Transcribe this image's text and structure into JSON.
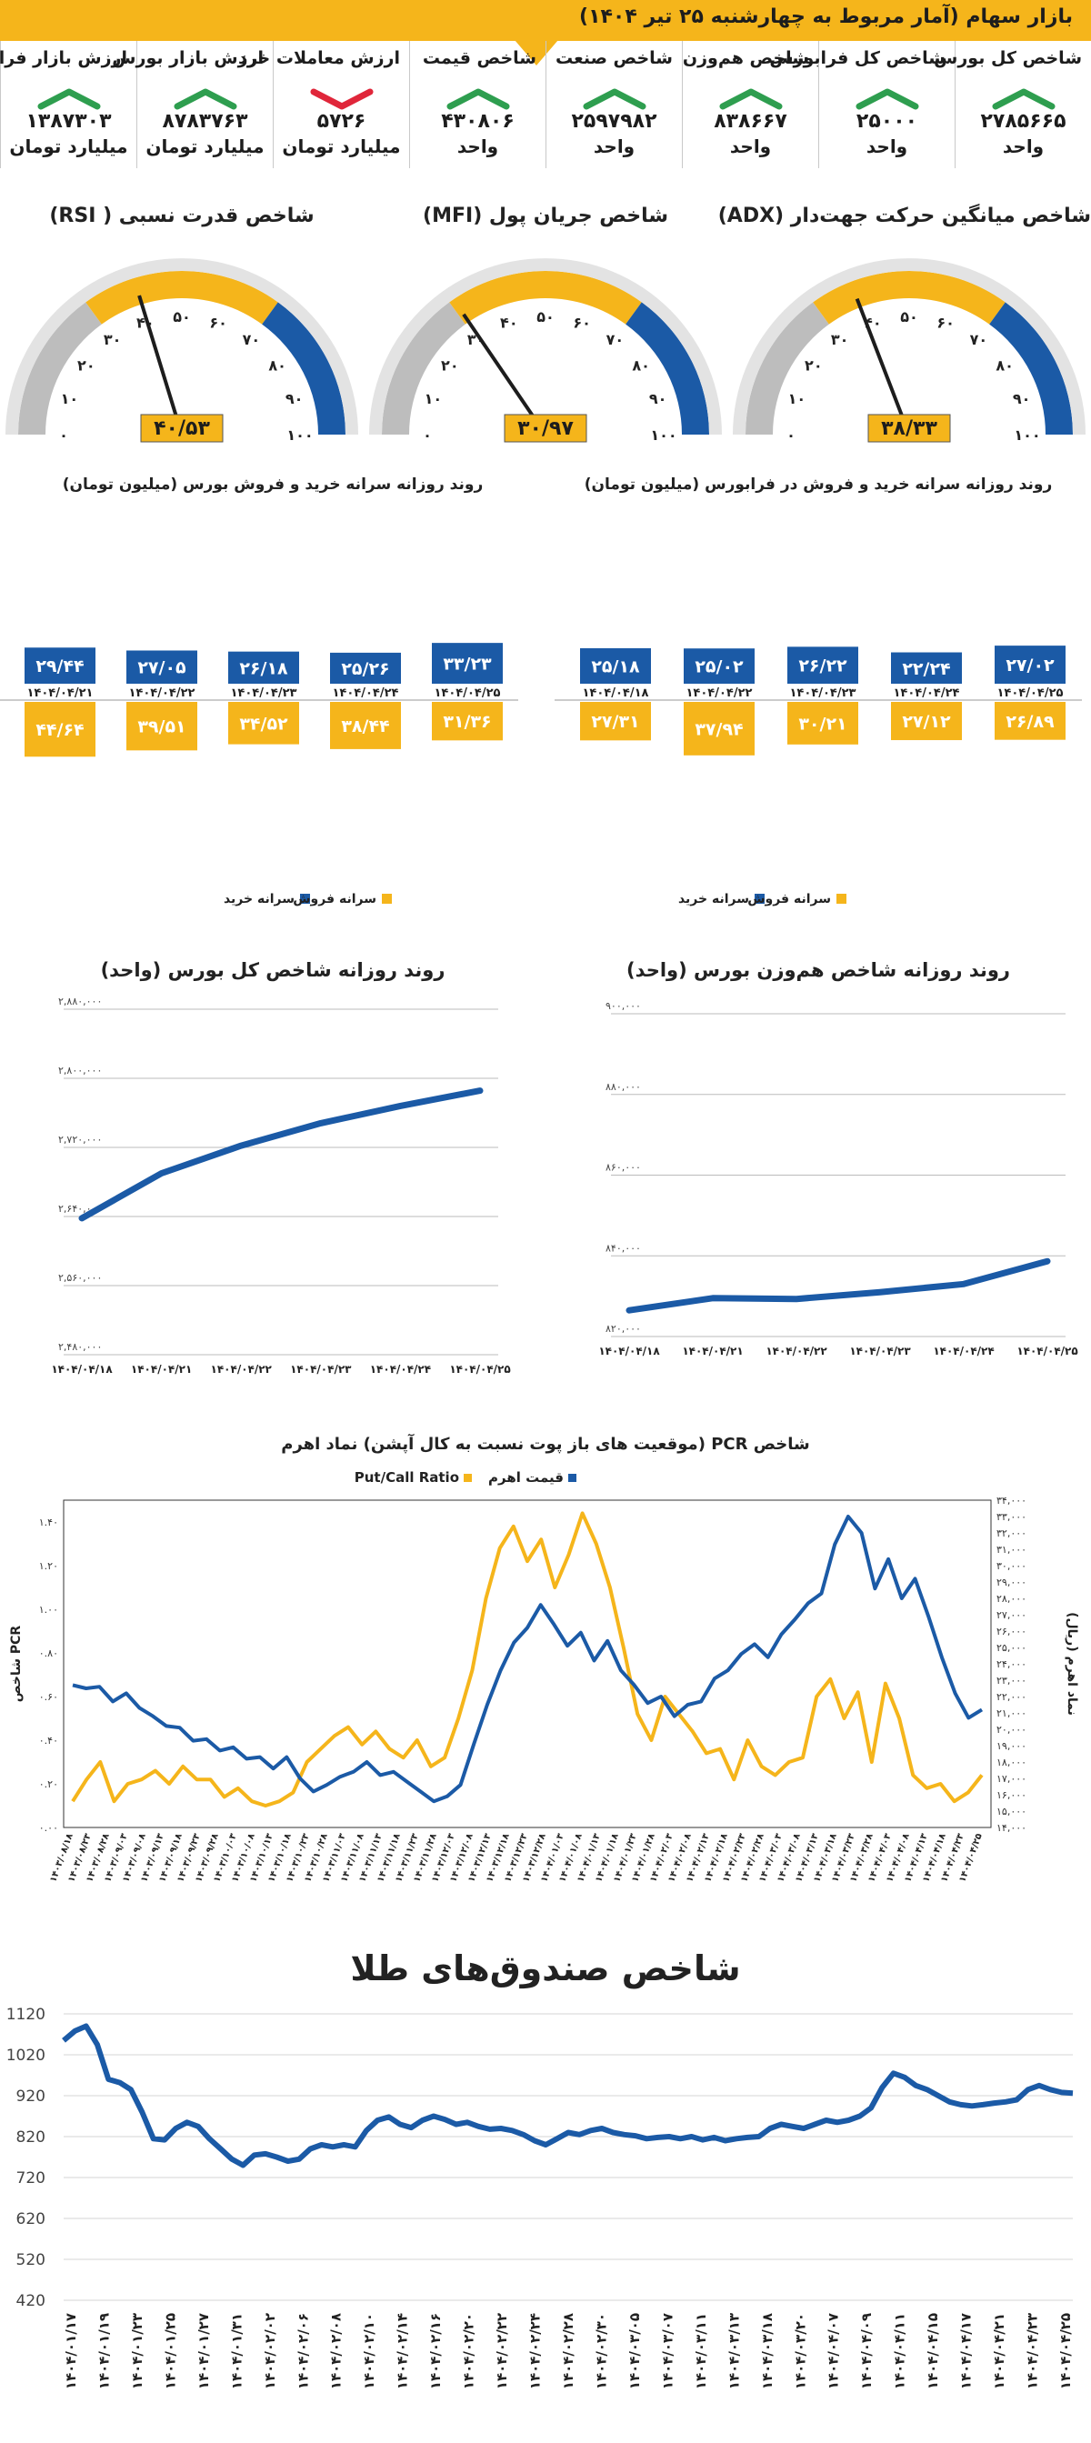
{
  "header": {
    "title": "بازار سهام (آمار مربوط به چهارشنبه ۲۵ تیر ۱۴۰۴)"
  },
  "stats": [
    {
      "label": "شاخص کل بورس",
      "value": "۲۷۸۵۶۶۵",
      "unit": "واحد",
      "trend": "up"
    },
    {
      "label": "شاخص کل فرابورس",
      "value": "۲۵۰۰۰",
      "unit": "واحد",
      "trend": "up"
    },
    {
      "label": "شاخص هم‌وزن",
      "value": "۸۳۸۶۶۷",
      "unit": "واحد",
      "trend": "up"
    },
    {
      "label": "شاخص صنعت",
      "value": "۲۵۹۷۹۸۲",
      "unit": "واحد",
      "trend": "up"
    },
    {
      "label": "شاخص قیمت",
      "value": "۴۳۰۸۰۶",
      "unit": "واحد",
      "trend": "up"
    },
    {
      "label": "ارزش معاملات خرد",
      "value": "۵۷۲۶",
      "unit": "میلیارد تومان",
      "trend": "down"
    },
    {
      "label": "ارزش بازار بورس",
      "value": "۸۷۸۳۷۶۳",
      "unit": "میلیارد تومان",
      "trend": "up"
    },
    {
      "label": "ارزش بازار فرابورس",
      "value": "۱۳۸۷۳۰۳",
      "unit": "میلیارد تومان",
      "trend": "up"
    }
  ],
  "colors": {
    "gold": "#f5b51b",
    "blue": "#1b5aa6",
    "up": "#2e9e4f",
    "down": "#e0263a",
    "gauge_gray": "#bdbdbd"
  },
  "gauges": [
    {
      "title": "شاخص میانگین حرکت جهت‌دار (ADX)",
      "value": 38.33,
      "value_label": "۳۸/۳۳"
    },
    {
      "title": "شاخص جریان پول (MFI)",
      "value": 30.97,
      "value_label": "۳۰/۹۷"
    },
    {
      "title": "شاخص قدرت نسبی ( RSI)",
      "value": 40.53,
      "value_label": "۴۰/۵۳"
    }
  ],
  "gauge_ticks": [
    "۰",
    "۱۰",
    "۲۰",
    "۳۰",
    "۴۰",
    "۵۰",
    "۶۰",
    "۷۰",
    "۸۰",
    "۹۰",
    "۱۰۰"
  ],
  "chart_data": [
    {
      "type": "bar",
      "title": "روند روزانه سرانه خرید و فروش در فرابورس (میلیون تومان)",
      "categories": [
        "۱۴۰۴/۰۴/۱۸",
        "۱۴۰۴/۰۴/۲۲",
        "۱۴۰۴/۰۴/۲۳",
        "۱۴۰۴/۰۴/۲۴",
        "۱۴۰۴/۰۴/۲۵"
      ],
      "series": [
        {
          "name": "سرانه خرید",
          "values": [
            25.18,
            25.02,
            26.22,
            22.24,
            27.02
          ],
          "labels": [
            "۲۵/۱۸",
            "۲۵/۰۲",
            "۲۶/۲۲",
            "۲۲/۲۴",
            "۲۷/۰۲"
          ]
        },
        {
          "name": "سرانه فروش",
          "values": [
            27.31,
            37.94,
            30.21,
            27.12,
            26.89
          ],
          "labels": [
            "۲۷/۳۱",
            "۳۷/۹۴",
            "۳۰/۲۱",
            "۲۷/۱۲",
            "۲۶/۸۹"
          ]
        }
      ]
    },
    {
      "type": "bar",
      "title": "روند روزانه سرانه خرید و فروش بورس (میلیون تومان)",
      "categories": [
        "۱۴۰۴/۰۴/۲۱",
        "۱۴۰۴/۰۴/۲۲",
        "۱۴۰۴/۰۴/۲۳",
        "۱۴۰۴/۰۴/۲۴",
        "۱۴۰۴/۰۴/۲۵"
      ],
      "series": [
        {
          "name": "سرانه خرید",
          "values": [
            29.44,
            27.05,
            26.18,
            25.26,
            33.23
          ],
          "labels": [
            "۲۹/۴۴",
            "۲۷/۰۵",
            "۲۶/۱۸",
            "۲۵/۲۶",
            "۳۳/۲۳"
          ]
        },
        {
          "name": "سرانه فروش",
          "values": [
            44.64,
            39.51,
            34.52,
            38.44,
            31.36
          ],
          "labels": [
            "۴۴/۶۴",
            "۳۹/۵۱",
            "۳۴/۵۲",
            "۳۸/۴۴",
            "۳۱/۳۶"
          ]
        }
      ]
    },
    {
      "type": "line",
      "title": "روند روزانه شاخص هم‌وزن بورس (واحد)",
      "x": [
        "۱۴۰۴/۰۴/۱۸",
        "۱۴۰۴/۰۴/۲۱",
        "۱۴۰۴/۰۴/۲۲",
        "۱۴۰۴/۰۴/۲۳",
        "۱۴۰۴/۰۴/۲۴",
        "۱۴۰۴/۰۴/۲۵"
      ],
      "values": [
        826500,
        829500,
        829300,
        831000,
        833000,
        838667
      ],
      "ylim": [
        820000,
        900000
      ],
      "yticks": [
        820000,
        840000,
        860000,
        880000,
        900000
      ],
      "ytick_labels": [
        "۸۲۰,۰۰۰",
        "۸۴۰,۰۰۰",
        "۸۶۰,۰۰۰",
        "۸۸۰,۰۰۰",
        "۹۰۰,۰۰۰"
      ]
    },
    {
      "type": "line",
      "title": "روند روزانه شاخص کل بورس (واحد)",
      "x": [
        "۱۴۰۴/۰۴/۱۸",
        "۱۴۰۴/۰۴/۲۱",
        "۱۴۰۴/۰۴/۲۲",
        "۱۴۰۴/۰۴/۲۳",
        "۱۴۰۴/۰۴/۲۴",
        "۱۴۰۴/۰۴/۲۵"
      ],
      "values": [
        2638000,
        2690000,
        2722000,
        2748000,
        2768000,
        2785665
      ],
      "ylim": [
        2480000,
        2880000
      ],
      "yticks": [
        2480000,
        2560000,
        2640000,
        2720000,
        2800000,
        2880000
      ],
      "ytick_labels": [
        "۲,۴۸۰,۰۰۰",
        "۲,۵۶۰,۰۰۰",
        "۲,۶۴۰,۰۰۰",
        "۲,۷۲۰,۰۰۰",
        "۲,۸۰۰,۰۰۰",
        "۲,۸۸۰,۰۰۰"
      ]
    },
    {
      "type": "line",
      "title": "شاخص PCR (موقعیت های باز پوت نسبت به کال آپشن) نماد اهرم",
      "left_axis_label": "شاخص PCR",
      "right_axis_label": "نماد اهرم (ریال)",
      "left_ylim": [
        0,
        1.5
      ],
      "left_ytick_labels": [
        "۰.۰۰",
        "۰.۲۰",
        "۰.۴۰",
        "۰.۶۰",
        "۰.۸۰",
        "۱.۰۰",
        "۱.۲۰",
        "۱.۴۰"
      ],
      "right_ylim": [
        14000,
        34000
      ],
      "right_ytick_labels": [
        "۱۴,۰۰۰",
        "۱۵,۰۰۰",
        "۱۶,۰۰۰",
        "۱۷,۰۰۰",
        "۱۸,۰۰۰",
        "۱۹,۰۰۰",
        "۲۰,۰۰۰",
        "۲۱,۰۰۰",
        "۲۲,۰۰۰",
        "۲۳,۰۰۰",
        "۲۴,۰۰۰",
        "۲۵,۰۰۰",
        "۲۶,۰۰۰",
        "۲۷,۰۰۰",
        "۲۸,۰۰۰",
        "۲۹,۰۰۰",
        "۳۰,۰۰۰",
        "۳۱,۰۰۰",
        "۳۲,۰۰۰",
        "۳۳,۰۰۰",
        "۳۴,۰۰۰"
      ],
      "series": [
        {
          "name": "Put/Call Ratio",
          "axis": "left",
          "values": [
            0.12,
            0.22,
            0.3,
            0.12,
            0.2,
            0.22,
            0.26,
            0.2,
            0.28,
            0.22,
            0.22,
            0.14,
            0.18,
            0.12,
            0.1,
            0.12,
            0.16,
            0.3,
            0.36,
            0.42,
            0.46,
            0.38,
            0.44,
            0.36,
            0.32,
            0.4,
            0.28,
            0.32,
            0.5,
            0.72,
            1.05,
            1.28,
            1.38,
            1.22,
            1.32,
            1.1,
            1.25,
            1.44,
            1.3,
            1.1,
            0.82,
            0.52,
            0.4,
            0.6,
            0.52,
            0.44,
            0.34,
            0.36,
            0.22,
            0.4,
            0.28,
            0.24,
            0.3,
            0.32,
            0.6,
            0.68,
            0.5,
            0.62,
            0.3,
            0.66,
            0.5,
            0.24,
            0.18,
            0.2,
            0.12,
            0.16,
            0.24
          ]
        },
        {
          "name": "قیمت اهرم",
          "axis": "right",
          "values": [
            22700,
            22500,
            22600,
            21700,
            22200,
            21300,
            20800,
            20200,
            20100,
            19300,
            19400,
            18700,
            18900,
            18200,
            18300,
            17600,
            18300,
            17000,
            16200,
            16600,
            17100,
            17400,
            18000,
            17200,
            17400,
            16800,
            16200,
            15600,
            15900,
            16600,
            19100,
            21500,
            23600,
            25300,
            26200,
            27600,
            26400,
            25100,
            25900,
            24200,
            25400,
            23600,
            22700,
            21600,
            22000,
            20800,
            21500,
            21700,
            23100,
            23600,
            24600,
            25200,
            24400,
            25800,
            26700,
            27700,
            28300,
            31300,
            33000,
            32000,
            28600,
            30400,
            28000,
            29200,
            26900,
            24400,
            22200,
            20700,
            21200
          ]
        }
      ],
      "x_tick_labels": [
        "۱۴۰۳/۰۸/۱۸",
        "۱۴۰۳/۰۸/۲۳",
        "۱۴۰۳/۰۸/۲۸",
        "۱۴۰۳/۰۹/۰۳",
        "۱۴۰۳/۰۹/۰۸",
        "۱۴۰۳/۰۹/۱۳",
        "۱۴۰۳/۰۹/۱۸",
        "۱۴۰۳/۰۹/۲۳",
        "۱۴۰۳/۰۹/۲۸",
        "۱۴۰۳/۱۰/۰۳",
        "۱۴۰۳/۱۰/۰۸",
        "۱۴۰۳/۱۰/۱۳",
        "۱۴۰۳/۱۰/۱۸",
        "۱۴۰۳/۱۰/۲۳",
        "۱۴۰۳/۱۰/۲۸",
        "۱۴۰۳/۱۱/۰۳",
        "۱۴۰۳/۱۱/۰۸",
        "۱۴۰۳/۱۱/۱۳",
        "۱۴۰۳/۱۱/۱۸",
        "۱۴۰۳/۱۱/۲۳",
        "۱۴۰۳/۱۱/۲۸",
        "۱۴۰۳/۱۲/۰۳",
        "۱۴۰۳/۱۲/۰۸",
        "۱۴۰۳/۱۲/۱۳",
        "۱۴۰۳/۱۲/۱۸",
        "۱۴۰۳/۱۲/۲۳",
        "۱۴۰۳/۱۲/۲۸",
        "۱۴۰۴/۰۱/۰۳",
        "۱۴۰۴/۰۱/۰۸",
        "۱۴۰۴/۰۱/۱۳",
        "۱۴۰۴/۰۱/۱۸",
        "۱۴۰۴/۰۱/۲۳",
        "۱۴۰۴/۰۱/۲۸",
        "۱۴۰۴/۰۲/۰۳",
        "۱۴۰۴/۰۲/۰۸",
        "۱۴۰۴/۰۲/۱۳",
        "۱۴۰۴/۰۲/۱۸",
        "۱۴۰۴/۰۲/۲۳",
        "۱۴۰۴/۰۲/۲۸",
        "۱۴۰۴/۰۳/۰۳",
        "۱۴۰۴/۰۳/۰۸",
        "۱۴۰۴/۰۳/۱۳",
        "۱۴۰۴/۰۳/۱۸",
        "۱۴۰۴/۰۳/۲۳",
        "۱۴۰۴/۰۳/۲۸",
        "۱۴۰۴/۰۴/۰۳",
        "۱۴۰۴/۰۴/۰۸",
        "۱۴۰۴/۰۴/۱۳",
        "۱۴۰۴/۰۴/۱۸",
        "۱۴۰۴/۰۴/۲۳",
        "۱۴۰۴/۰۴/۲۵"
      ]
    },
    {
      "type": "line",
      "title": "شاخص صندوق‌های طلا",
      "ylim": [
        420,
        1120
      ],
      "yticks": [
        420,
        520,
        620,
        720,
        820,
        920,
        1020,
        1120
      ],
      "values": [
        1055,
        1078,
        1090,
        1045,
        960,
        952,
        935,
        880,
        815,
        812,
        840,
        855,
        845,
        815,
        790,
        765,
        750,
        775,
        778,
        770,
        760,
        765,
        790,
        800,
        795,
        800,
        795,
        835,
        860,
        868,
        850,
        842,
        860,
        870,
        862,
        850,
        855,
        845,
        838,
        840,
        835,
        825,
        810,
        800,
        815,
        830,
        825,
        835,
        840,
        830,
        825,
        822,
        815,
        818,
        820,
        815,
        820,
        812,
        818,
        810,
        815,
        818,
        820,
        840,
        850,
        845,
        840,
        850,
        860,
        855,
        860,
        870,
        890,
        940,
        975,
        965,
        945,
        935,
        920,
        905,
        898,
        895,
        898,
        902,
        905,
        910,
        935,
        945,
        935,
        928,
        926
      ]
    }
  ],
  "legends": {
    "buy": "سرانه خرید",
    "sell": "سرانه فروش",
    "pcr": "Put/Call Ratio",
    "price": "قیمت اهرم"
  },
  "gold_x_labels": [
    "۱۴۰۴/۰۱/۱۷",
    "۱۴۰۴/۰۱/۱۹",
    "۱۴۰۴/۰۱/۲۳",
    "۱۴۰۴/۰۱/۲۵",
    "۱۴۰۴/۰۱/۲۷",
    "۱۴۰۴/۰۱/۳۱",
    "۱۴۰۴/۰۲/۰۲",
    "۱۴۰۴/۰۲/۰۶",
    "۱۴۰۴/۰۲/۰۸",
    "۱۴۰۴/۰۲/۱۰",
    "۱۴۰۴/۰۲/۱۴",
    "۱۴۰۴/۰۲/۱۶",
    "۱۴۰۴/۰۲/۲۰",
    "۱۴۰۴/۰۲/۲۲",
    "۱۴۰۴/۰۲/۲۴",
    "۱۴۰۴/۰۲/۲۸",
    "۱۴۰۴/۰۲/۳۰",
    "۱۴۰۴/۰۳/۰۵",
    "۱۴۰۴/۰۳/۰۷",
    "۱۴۰۴/۰۳/۱۱",
    "۱۴۰۴/۰۳/۱۳",
    "۱۴۰۴/۰۳/۱۸",
    "۱۴۰۴/۰۳/۲۰",
    "۱۴۰۴/۰۴/۰۷",
    "۱۴۰۴/۰۴/۰۹",
    "۱۴۰۴/۰۴/۱۱",
    "۱۴۰۴/۰۴/۱۵",
    "۱۴۰۴/۰۴/۱۷",
    "۱۴۰۴/۰۴/۲۱",
    "۱۴۰۴/۰۴/۲۳",
    "۱۴۰۴/۰۴/۲۵"
  ]
}
